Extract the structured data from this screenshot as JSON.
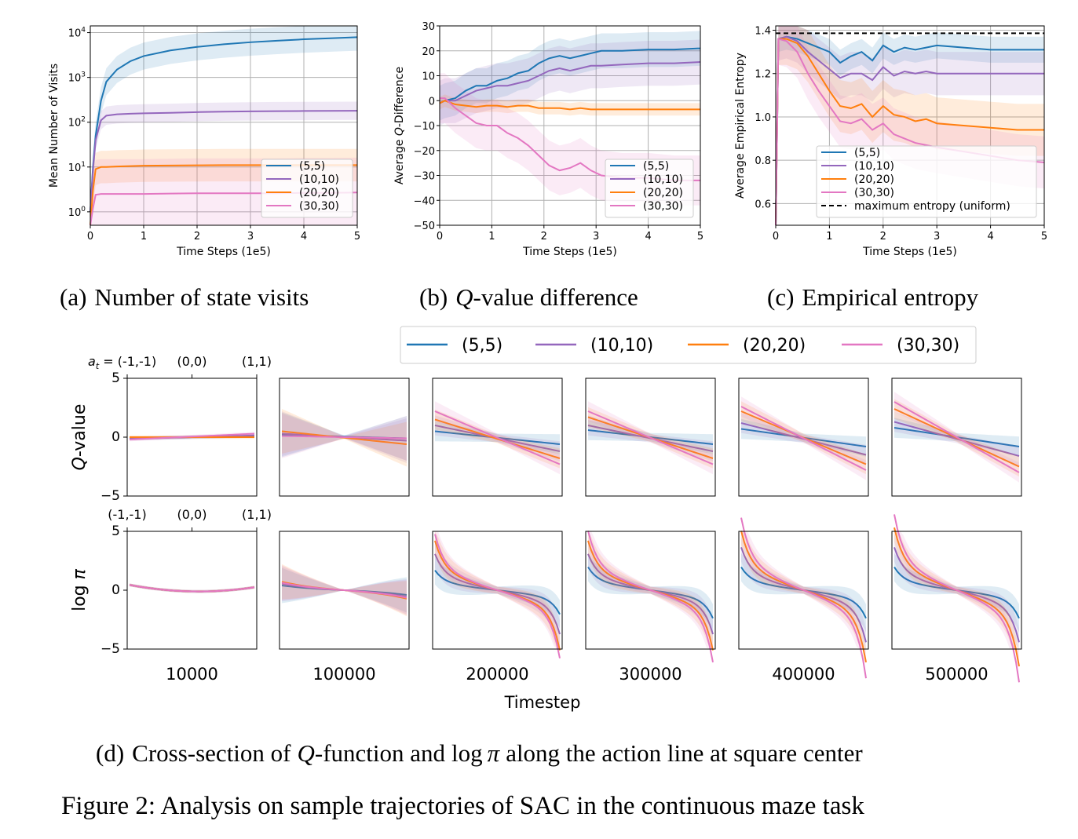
{
  "colors": {
    "s5": "#1f77b4",
    "s10": "#9467bd",
    "s20": "#ff7f0e",
    "s30": "#e377c2"
  },
  "captions": {
    "a_label": "(a)",
    "a_text": "Number of state visits",
    "b_label": "(b)",
    "b_text": "-value difference",
    "b_q": "Q",
    "c_label": "(c)",
    "c_text": "Empirical entropy",
    "d_label": "(d)",
    "d_pre": "Cross-section of",
    "d_q": "Q",
    "d_mid": "-function and",
    "d_log": "log",
    "d_pi": "π",
    "d_post": "along the action line at square center",
    "figure": "Figure 2: Analysis on sample trajectories of SAC in the continuous maze task"
  },
  "legend_labels": [
    "(5,5)",
    "(10,10)",
    "(20,20)",
    "(30,30)"
  ],
  "legend_extra_c": "maximum entropy (uniform)",
  "panel_titles": [
    "10000",
    "100000",
    "200000",
    "300000",
    "400000",
    "500000"
  ],
  "timestep_label": "Timestep",
  "row_labels": {
    "q_italic": "Q",
    "q_rest": "-value",
    "log": "log",
    "pi": "π"
  },
  "action_ticks_top": {
    "prefix": "a",
    "sub": "t",
    "eq": " = ",
    "labels": [
      "(-1,-1)",
      "(0,0)",
      "(1,1)"
    ]
  },
  "action_ticks_bottom": [
    "(-1,-1)",
    "(0,0)",
    "(1,1)"
  ],
  "chart_data": [
    {
      "id": "a",
      "type": "line",
      "xlabel": "Time Steps (1e5)",
      "ylabel": "Mean Number of Visits",
      "xlim": [
        0,
        5
      ],
      "ylim_log10": [
        -0.3,
        4.15
      ],
      "yscale": "log",
      "xticks": [
        "0",
        "1",
        "2",
        "3",
        "4",
        "5"
      ],
      "yticks": [
        {
          "base": "10",
          "exp": "0",
          "v": 0
        },
        {
          "base": "10",
          "exp": "1",
          "v": 1
        },
        {
          "base": "10",
          "exp": "2",
          "v": 2
        },
        {
          "base": "10",
          "exp": "3",
          "v": 3
        },
        {
          "base": "10",
          "exp": "4",
          "v": 4
        }
      ],
      "grid": true,
      "legend": "lower-right",
      "x": [
        0,
        0.05,
        0.1,
        0.2,
        0.3,
        0.5,
        0.75,
        1,
        1.5,
        2,
        2.5,
        3,
        3.5,
        4,
        4.5,
        5
      ],
      "series": [
        {
          "name": "(5,5)",
          "key": "s5",
          "values": [
            1,
            10,
            50,
            300,
            800,
            1500,
            2300,
            3000,
            4000,
            4800,
            5500,
            6100,
            6600,
            7100,
            7500,
            7900
          ],
          "band": 2.0
        },
        {
          "name": "(10,10)",
          "key": "s10",
          "values": [
            1,
            8,
            40,
            110,
            140,
            150,
            155,
            158,
            162,
            168,
            172,
            175,
            177,
            178,
            179,
            180
          ],
          "band": 1.6
        },
        {
          "name": "(20,20)",
          "key": "s20",
          "values": [
            0.5,
            3,
            9,
            10,
            10,
            10.3,
            10.5,
            10.7,
            10.8,
            10.9,
            11,
            11,
            11,
            11,
            11,
            11
          ],
          "band": 2.3
        },
        {
          "name": "(30,30)",
          "key": "s30",
          "values": [
            0.4,
            1.2,
            2.4,
            2.5,
            2.5,
            2.5,
            2.5,
            2.5,
            2.55,
            2.6,
            2.6,
            2.6,
            2.6,
            2.65,
            2.65,
            2.7
          ],
          "band": 6.0
        }
      ]
    },
    {
      "id": "b",
      "type": "line",
      "xlabel": "Time Steps (1e5)",
      "ylabel_pre": "Average ",
      "ylabel_q": "Q",
      "ylabel_post": "-Difference",
      "xlim": [
        0,
        5
      ],
      "ylim": [
        -50,
        30
      ],
      "xticks": [
        "0",
        "1",
        "2",
        "3",
        "4",
        "5"
      ],
      "yticks": [
        -50,
        -40,
        -30,
        -20,
        -10,
        0,
        10,
        20,
        30
      ],
      "grid": true,
      "legend": "lower-right",
      "x": [
        0,
        0.1,
        0.3,
        0.5,
        0.7,
        0.9,
        1.1,
        1.3,
        1.5,
        1.7,
        1.9,
        2.1,
        2.3,
        2.5,
        2.7,
        2.9,
        3.1,
        3.5,
        4,
        4.5,
        5
      ],
      "series": [
        {
          "name": "(5,5)",
          "key": "s5",
          "values": [
            -1,
            0,
            1,
            4,
            6,
            6,
            8,
            9,
            11,
            12,
            15,
            17,
            18,
            17,
            18,
            19,
            20,
            20,
            20.5,
            20.5,
            21
          ],
          "band": 7
        },
        {
          "name": "(10,10)",
          "key": "s10",
          "values": [
            -1,
            0,
            0,
            2,
            4,
            5,
            6,
            6,
            7,
            8,
            10,
            12,
            13,
            12,
            13,
            14,
            14,
            14.5,
            15,
            15,
            15.5
          ],
          "band": 9
        },
        {
          "name": "(20,20)",
          "key": "s20",
          "values": [
            -1,
            0,
            -1.5,
            -2,
            -2.5,
            -2,
            -2,
            -2.5,
            -2,
            -2,
            -3,
            -3,
            -3,
            -3.5,
            -3,
            -3.5,
            -3.5,
            -3.5,
            -3.5,
            -3.5,
            -3.5
          ],
          "band": 2.5
        },
        {
          "name": "(30,30)",
          "key": "s30",
          "values": [
            1,
            1,
            -3,
            -6,
            -9,
            -10,
            -10,
            -13,
            -15,
            -18,
            -22,
            -26,
            -28,
            -27,
            -25,
            -28,
            -30,
            -31,
            -31,
            -32,
            -32
          ],
          "band": 10
        }
      ]
    },
    {
      "id": "c",
      "type": "line",
      "xlabel": "Time Steps (1e5)",
      "ylabel": "Average Empirical Entropy",
      "xlim": [
        0,
        5
      ],
      "ylim": [
        0.5,
        1.42
      ],
      "xticks": [
        "0",
        "1",
        "2",
        "3",
        "4",
        "5"
      ],
      "yticks": [
        "0.6",
        "0.8",
        "1.0",
        "1.2",
        "1.4"
      ],
      "grid": true,
      "legend": "lower-left",
      "max_entropy": 1.386,
      "x": [
        0,
        0.05,
        0.2,
        0.4,
        0.6,
        0.8,
        1,
        1.2,
        1.4,
        1.6,
        1.8,
        2,
        2.2,
        2.4,
        2.6,
        2.8,
        3,
        3.5,
        4,
        4.5,
        5
      ],
      "series": [
        {
          "name": "(5,5)",
          "key": "s5",
          "values": [
            0.5,
            1.36,
            1.37,
            1.36,
            1.34,
            1.32,
            1.3,
            1.25,
            1.28,
            1.3,
            1.26,
            1.33,
            1.3,
            1.32,
            1.31,
            1.32,
            1.33,
            1.32,
            1.31,
            1.31,
            1.31
          ],
          "band": 0.06
        },
        {
          "name": "(10,10)",
          "key": "s10",
          "values": [
            0.5,
            1.36,
            1.37,
            1.35,
            1.3,
            1.26,
            1.22,
            1.18,
            1.2,
            1.2,
            1.17,
            1.23,
            1.19,
            1.21,
            1.2,
            1.21,
            1.2,
            1.2,
            1.2,
            1.2,
            1.2
          ],
          "band": 0.1
        },
        {
          "name": "(20,20)",
          "key": "s20",
          "values": [
            0.5,
            1.36,
            1.36,
            1.34,
            1.28,
            1.2,
            1.12,
            1.05,
            1.04,
            1.06,
            1.0,
            1.05,
            1.01,
            1.0,
            0.98,
            0.99,
            0.97,
            0.96,
            0.95,
            0.94,
            0.94
          ],
          "band": 0.12
        },
        {
          "name": "(30,30)",
          "key": "s30",
          "values": [
            0.5,
            1.36,
            1.35,
            1.3,
            1.2,
            1.12,
            1.05,
            0.98,
            0.97,
            0.99,
            0.94,
            0.97,
            0.92,
            0.9,
            0.88,
            0.87,
            0.86,
            0.84,
            0.82,
            0.8,
            0.79
          ],
          "band": 0.12
        }
      ]
    },
    {
      "id": "d",
      "type": "line",
      "description_of": "Q-value and log pi cross-sections over action a_t from (-1,-1) to (1,1)",
      "rows": [
        "Q-value",
        "log π"
      ],
      "ylim": [
        -5,
        5
      ],
      "yticks": [
        "5",
        "0",
        "−5"
      ],
      "xlim": [
        -1,
        1
      ],
      "timesteps": [
        10000,
        100000,
        200000,
        300000,
        400000,
        500000
      ],
      "q_endpoints_left": [
        {
          "s5": -0.1,
          "s10": -0.15,
          "s20": 0.0,
          "s30": -0.2
        },
        {
          "s5": 0.2,
          "s10": 0.3,
          "s20": 0.5,
          "s30": 0.1
        },
        {
          "s5": 0.5,
          "s10": 1.0,
          "s20": 1.5,
          "s30": 2.2
        },
        {
          "s5": 0.6,
          "s10": 1.0,
          "s20": 1.7,
          "s30": 2.2
        },
        {
          "s5": 0.7,
          "s10": 1.2,
          "s20": 2.2,
          "s30": 2.6
        },
        {
          "s5": 0.8,
          "s10": 1.3,
          "s20": 2.4,
          "s30": 3.0
        }
      ],
      "q_endpoints_right": [
        {
          "s5": 0.1,
          "s10": 0.15,
          "s20": 0.0,
          "s30": 0.3
        },
        {
          "s5": -0.1,
          "s10": -0.3,
          "s20": -0.6,
          "s30": -0.1
        },
        {
          "s5": -0.6,
          "s10": -1.2,
          "s20": -1.8,
          "s30": -2.3
        },
        {
          "s5": -0.6,
          "s10": -1.2,
          "s20": -1.8,
          "s30": -2.3
        },
        {
          "s5": -0.8,
          "s10": -1.5,
          "s20": -2.3,
          "s30": -2.8
        },
        {
          "s5": -0.8,
          "s10": -1.6,
          "s20": -2.5,
          "s30": -3.0
        }
      ],
      "logpi_scale": [
        {
          "s5": 0.15,
          "s10": 0.15,
          "s20": 0.15,
          "s30": 0.15
        },
        {
          "s5": 0.25,
          "s10": 0.35,
          "s20": 0.45,
          "s30": 0.4
        },
        {
          "s5": 0.6,
          "s10": 1.1,
          "s20": 1.5,
          "s30": 1.7
        },
        {
          "s5": 0.7,
          "s10": 1.1,
          "s20": 1.5,
          "s30": 1.8
        },
        {
          "s5": 0.7,
          "s10": 1.3,
          "s20": 1.8,
          "s30": 2.2
        },
        {
          "s5": 0.7,
          "s10": 1.3,
          "s20": 1.9,
          "s30": 2.3
        }
      ]
    }
  ]
}
